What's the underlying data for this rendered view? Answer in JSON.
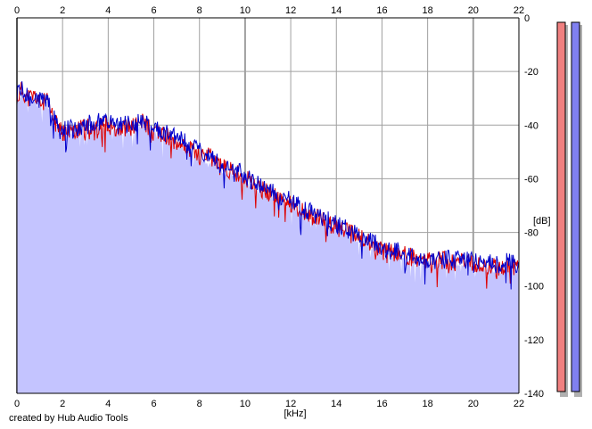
{
  "chart_data": {
    "type": "area",
    "x_axis": {
      "label": "[kHz]",
      "range": [
        0,
        22
      ],
      "ticks": [
        0,
        2,
        4,
        6,
        8,
        10,
        12,
        14,
        16,
        18,
        20,
        22
      ],
      "top_ticks": [
        0,
        2,
        4,
        6,
        8,
        10,
        12,
        14,
        16,
        18,
        20,
        22
      ]
    },
    "y_axis": {
      "label": "[dB]",
      "range": [
        -140,
        0
      ],
      "ticks": [
        0,
        -20,
        -40,
        -60,
        -80,
        -100,
        -120,
        -140
      ],
      "position": "right"
    },
    "grid": true,
    "series": [
      {
        "color": "#dd0000",
        "x": [
          0,
          0.2,
          0.5,
          0.8,
          1.0,
          1.3,
          1.6,
          2.0,
          2.5,
          3.0,
          3.5,
          4.0,
          4.5,
          5.0,
          5.5,
          6.0,
          6.5,
          7.0,
          7.5,
          8.0,
          8.5,
          9.0,
          9.5,
          10.0,
          10.5,
          11.0,
          11.5,
          12.0,
          12.5,
          13.0,
          13.5,
          14.0,
          14.5,
          15.0,
          15.5,
          16.0,
          16.5,
          17.0,
          17.5,
          18.0,
          18.5,
          19.0,
          19.5,
          20.0,
          20.5,
          21.0,
          21.5,
          22.0
        ],
        "values": [
          -30,
          -27,
          -30,
          -29,
          -32,
          -31,
          -38,
          -43,
          -42,
          -41,
          -40,
          -40,
          -41,
          -41,
          -39,
          -42,
          -44,
          -46,
          -48,
          -51,
          -52,
          -56,
          -57,
          -60,
          -63,
          -65,
          -67,
          -69,
          -72,
          -74,
          -76,
          -78,
          -80,
          -82,
          -84,
          -87,
          -88,
          -88,
          -90,
          -91,
          -90,
          -91,
          -91,
          -92,
          -92,
          -93,
          -92,
          -93
        ]
      },
      {
        "color": "#0000cc",
        "x": [
          0,
          0.2,
          0.5,
          0.8,
          1.0,
          1.3,
          1.6,
          2.0,
          2.5,
          3.0,
          3.5,
          4.0,
          4.5,
          5.0,
          5.5,
          6.0,
          6.5,
          7.0,
          7.5,
          8.0,
          8.5,
          9.0,
          9.5,
          10.0,
          10.5,
          11.0,
          11.5,
          12.0,
          12.5,
          13.0,
          13.5,
          14.0,
          14.5,
          15.0,
          15.5,
          16.0,
          16.5,
          17.0,
          17.5,
          18.0,
          18.5,
          19.0,
          19.5,
          20.0,
          20.5,
          21.0,
          21.5,
          22.0
        ],
        "values": [
          -29,
          -27,
          -29,
          -28,
          -31,
          -30,
          -37,
          -42,
          -41,
          -40,
          -39,
          -39,
          -40,
          -40,
          -38,
          -41,
          -43,
          -45,
          -47,
          -50,
          -52,
          -55,
          -56,
          -59,
          -62,
          -64,
          -66,
          -68,
          -71,
          -73,
          -75,
          -77,
          -79,
          -81,
          -83,
          -86,
          -87,
          -87,
          -89,
          -90,
          -89,
          -90,
          -90,
          -91,
          -91,
          -92,
          -91,
          -92
        ]
      }
    ],
    "fill_color": "#c4c4ff",
    "level_meters": [
      {
        "color": "#f08080",
        "level": 1.0
      },
      {
        "color": "#8080f0",
        "level": 1.0
      }
    ]
  },
  "footer": {
    "credit": "created by Hub Audio Tools"
  }
}
